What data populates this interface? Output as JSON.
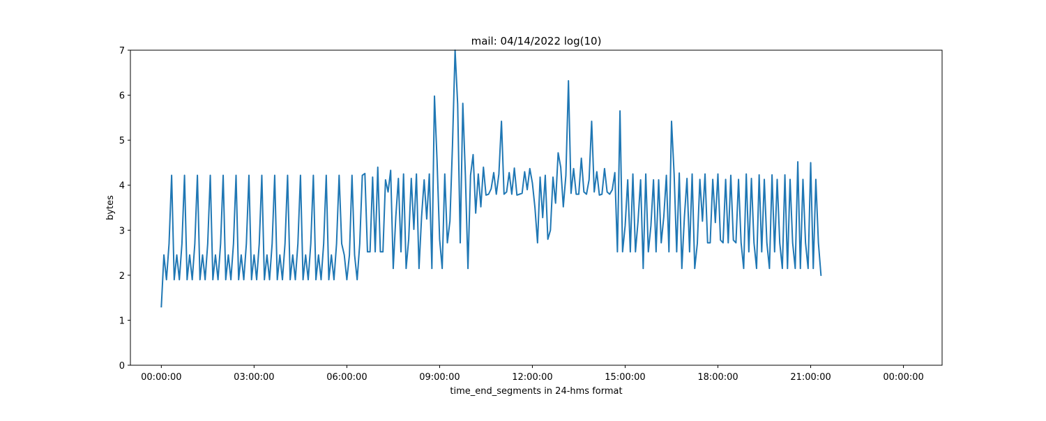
{
  "chart_data": {
    "type": "line",
    "title": "mail: 04/14/2022 log(10)",
    "xlabel": "time_end_segments in 24-hms format",
    "ylabel": "bytes",
    "xlim_hours": [
      -1.0,
      25.25
    ],
    "ylim": [
      0,
      7
    ],
    "x_ticks": [
      {
        "hours": 0,
        "label": "00:00:00"
      },
      {
        "hours": 3,
        "label": "03:00:00"
      },
      {
        "hours": 6,
        "label": "06:00:00"
      },
      {
        "hours": 9,
        "label": "09:00:00"
      },
      {
        "hours": 12,
        "label": "12:00:00"
      },
      {
        "hours": 15,
        "label": "15:00:00"
      },
      {
        "hours": 18,
        "label": "18:00:00"
      },
      {
        "hours": 21,
        "label": "21:00:00"
      },
      {
        "hours": 24,
        "label": "00:00:00"
      }
    ],
    "y_ticks": [
      0,
      1,
      2,
      3,
      4,
      5,
      6,
      7
    ],
    "grid": false,
    "series": [
      {
        "color": "#1f77b4",
        "x_step_minutes": 5,
        "values": [
          1.3,
          2.45,
          1.9,
          2.7,
          4.22,
          1.9,
          2.45,
          1.9,
          2.7,
          4.22,
          1.9,
          2.45,
          1.9,
          2.7,
          4.22,
          1.9,
          2.45,
          1.9,
          2.7,
          4.22,
          1.9,
          2.45,
          1.9,
          2.7,
          4.22,
          1.9,
          2.45,
          1.9,
          2.7,
          4.22,
          1.9,
          2.45,
          1.9,
          2.7,
          4.22,
          1.9,
          2.45,
          1.9,
          2.7,
          4.22,
          1.9,
          2.45,
          1.9,
          2.7,
          4.22,
          1.9,
          2.45,
          1.9,
          2.7,
          4.22,
          1.9,
          2.45,
          1.9,
          2.7,
          4.22,
          1.9,
          2.45,
          1.9,
          2.7,
          4.22,
          1.9,
          2.45,
          1.9,
          2.7,
          4.22,
          1.9,
          2.45,
          1.9,
          2.7,
          4.22,
          2.7,
          2.45,
          1.9,
          2.45,
          4.22,
          2.45,
          1.9,
          2.7,
          4.22,
          4.26,
          2.52,
          2.52,
          4.18,
          2.52,
          4.4,
          2.52,
          2.52,
          4.12,
          3.85,
          4.33,
          2.15,
          3.3,
          4.15,
          2.52,
          4.25,
          2.15,
          2.8,
          4.15,
          3.02,
          4.25,
          2.15,
          3.3,
          4.12,
          3.25,
          4.25,
          2.15,
          5.98,
          4.55,
          2.8,
          2.15,
          4.25,
          2.72,
          3.2,
          4.9,
          7.05,
          5.8,
          2.72,
          5.82,
          4.22,
          2.15,
          4.22,
          4.68,
          3.38,
          4.25,
          3.52,
          4.4,
          3.78,
          3.8,
          3.92,
          4.28,
          3.8,
          4.25,
          5.42,
          3.8,
          3.85,
          4.28,
          3.8,
          4.38,
          3.78,
          3.8,
          3.82,
          4.3,
          3.9,
          4.37,
          4.05,
          3.5,
          2.72,
          4.18,
          3.28,
          4.22,
          2.8,
          3.0,
          4.18,
          3.6,
          4.72,
          4.4,
          3.52,
          4.22,
          6.32,
          3.82,
          4.37,
          3.8,
          3.8,
          4.6,
          3.85,
          3.8,
          4.12,
          5.42,
          3.85,
          4.3,
          3.78,
          3.8,
          4.37,
          3.85,
          3.8,
          3.9,
          4.28,
          2.52,
          5.65,
          2.52,
          3.1,
          4.12,
          2.52,
          4.25,
          2.52,
          3.2,
          4.12,
          2.15,
          4.25,
          2.52,
          3.1,
          4.12,
          2.52,
          4.12,
          2.72,
          3.3,
          4.22,
          2.52,
          5.42,
          4.25,
          2.52,
          4.27,
          2.15,
          3.3,
          4.15,
          2.52,
          4.25,
          2.15,
          2.7,
          4.13,
          3.2,
          4.25,
          2.72,
          2.72,
          4.13,
          3.17,
          4.25,
          2.78,
          2.72,
          4.13,
          2.72,
          4.22,
          2.78,
          2.72,
          4.13,
          2.72,
          2.15,
          4.25,
          2.52,
          4.15,
          2.72,
          2.15,
          4.23,
          2.52,
          4.13,
          2.72,
          2.15,
          4.23,
          2.52,
          4.13,
          2.72,
          2.15,
          4.23,
          2.15,
          4.13,
          2.72,
          2.15,
          4.52,
          2.15,
          4.13,
          2.72,
          2.15,
          4.5,
          2.15,
          4.13,
          2.72,
          2.0
        ]
      }
    ]
  }
}
